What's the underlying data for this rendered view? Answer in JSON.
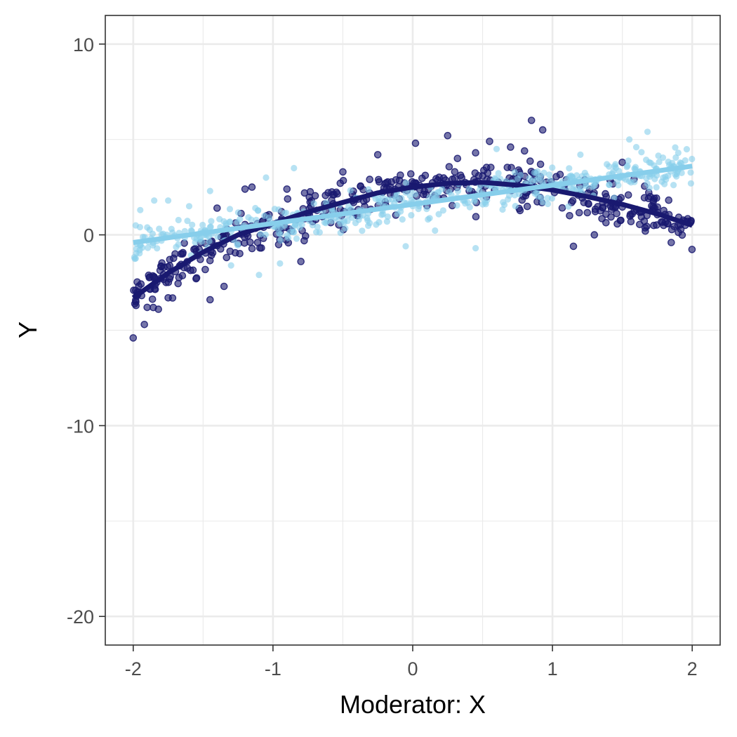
{
  "chart_data": {
    "type": "scatter",
    "title": "",
    "xlabel": "Moderator: X",
    "ylabel": "Y",
    "xlim": [
      -2.2,
      2.2
    ],
    "ylim": [
      -21.5,
      11.5
    ],
    "x_ticks": [
      -2,
      -1,
      0,
      1,
      2
    ],
    "y_ticks": [
      10,
      0,
      -10,
      -20
    ],
    "x_tick_labels": [
      "-2",
      "-1",
      "0",
      "1",
      "2"
    ],
    "y_tick_labels": [
      "10",
      "0",
      "-10",
      "-20"
    ],
    "grid": true,
    "legend": "none",
    "series": [
      {
        "color": "#191970",
        "point_count": 500,
        "x_range": [
          -2,
          2
        ],
        "points": [
          [
            -2.0,
            -5.4
          ],
          [
            -1.98,
            -3.7
          ],
          [
            -1.97,
            -3.0
          ],
          [
            -1.92,
            -4.7
          ],
          [
            -1.9,
            -3.8
          ],
          [
            -1.85,
            -2.2
          ],
          [
            -1.82,
            -3.9
          ],
          [
            -1.78,
            -1.7
          ],
          [
            -1.75,
            -3.3
          ],
          [
            -1.7,
            -1.0
          ],
          [
            -1.55,
            -2.3
          ],
          [
            -1.45,
            -3.4
          ],
          [
            -1.4,
            1.4
          ],
          [
            -1.35,
            -2.7
          ],
          [
            -1.2,
            2.4
          ],
          [
            -1.15,
            2.5
          ],
          [
            -0.9,
            2.4
          ],
          [
            -0.8,
            -1.4
          ],
          [
            -0.5,
            3.3
          ],
          [
            -0.25,
            4.2
          ],
          [
            0.02,
            4.8
          ],
          [
            0.25,
            5.2
          ],
          [
            0.35,
            3.0
          ],
          [
            0.45,
            4.3
          ],
          [
            0.55,
            4.9
          ],
          [
            0.7,
            4.6
          ],
          [
            0.8,
            4.4
          ],
          [
            0.85,
            6.0
          ],
          [
            0.93,
            5.5
          ],
          [
            1.15,
            -0.6
          ],
          [
            1.3,
            0.0
          ],
          [
            1.5,
            3.8
          ],
          [
            1.7,
            2.0
          ],
          [
            1.85,
            -0.4
          ],
          [
            1.95,
            0.5
          ]
        ],
        "trend": [
          [
            -2.0,
            -3.3
          ],
          [
            -1.75,
            -2.0
          ],
          [
            -1.5,
            -0.9
          ],
          [
            -1.25,
            0.0
          ],
          [
            -1.0,
            0.6
          ],
          [
            -0.75,
            1.2
          ],
          [
            -0.5,
            1.7
          ],
          [
            -0.25,
            2.2
          ],
          [
            0.0,
            2.5
          ],
          [
            0.25,
            2.7
          ],
          [
            0.5,
            2.75
          ],
          [
            0.75,
            2.6
          ],
          [
            1.0,
            2.35
          ],
          [
            1.25,
            2.0
          ],
          [
            1.5,
            1.6
          ],
          [
            1.75,
            1.1
          ],
          [
            2.0,
            0.5
          ]
        ]
      },
      {
        "color": "#87ceeb",
        "point_count": 500,
        "x_range": [
          -2,
          2
        ],
        "points": [
          [
            -1.95,
            1.3
          ],
          [
            -1.85,
            1.8
          ],
          [
            -1.75,
            1.8
          ],
          [
            -1.6,
            1.5
          ],
          [
            -1.45,
            2.3
          ],
          [
            -1.3,
            -1.6
          ],
          [
            -1.1,
            -2.1
          ],
          [
            -1.05,
            3.0
          ],
          [
            -0.95,
            -1.5
          ],
          [
            -0.85,
            3.5
          ],
          [
            -0.05,
            -0.6
          ],
          [
            0.45,
            -0.7
          ],
          [
            0.6,
            4.5
          ],
          [
            1.2,
            4.2
          ],
          [
            1.55,
            5.0
          ],
          [
            1.6,
            4.6
          ],
          [
            1.68,
            5.4
          ],
          [
            1.9,
            4.3
          ],
          [
            1.95,
            3.9
          ]
        ],
        "trend": [
          [
            -2.0,
            -0.4
          ],
          [
            2.0,
            3.6
          ]
        ]
      }
    ]
  }
}
